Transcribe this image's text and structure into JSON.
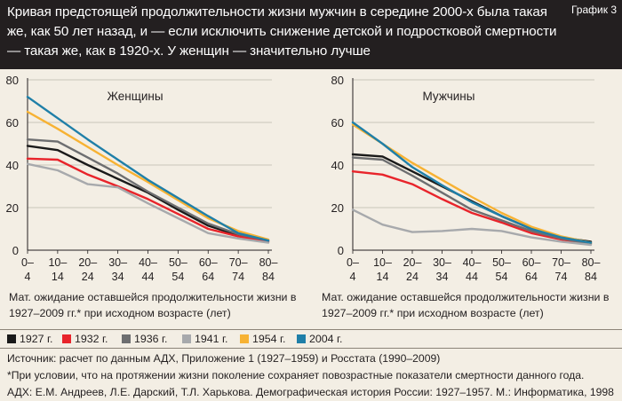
{
  "header": {
    "title": "Кривая предстоящей продолжительности жизни мужчин в середине 2000-х была такая же, как 50 лет назад, и — если исключить снижение детской и подростковой смертности — такая же, как в 1920-х. У женщин — значительно лучше",
    "tag": "График 3"
  },
  "chart_data": [
    {
      "type": "line",
      "title": "Женщины",
      "xlabel": "Мат. ожидание оставшейся продолжительности жизни в 1927–2009 гг.* при исходном возрасте (лет)",
      "ylabel": "",
      "ylim": [
        0,
        80
      ],
      "yticks": [
        "0",
        "20",
        "40",
        "60",
        "80"
      ],
      "categories": [
        "0–4",
        "10–14",
        "20–24",
        "30–34",
        "40–44",
        "50–54",
        "60–64",
        "70–74",
        "80–84"
      ],
      "series": [
        {
          "name": "1927 г.",
          "color": "#1a1a1a",
          "values": [
            49,
            47,
            40,
            33.5,
            27,
            19,
            11.5,
            7,
            4.5
          ]
        },
        {
          "name": "1932 г.",
          "color": "#e8242b",
          "values": [
            43,
            42.5,
            35.5,
            30,
            24,
            17,
            10,
            6.5,
            4
          ]
        },
        {
          "name": "1936 г.",
          "color": "#6d6e70",
          "values": [
            52,
            51,
            43.5,
            36,
            27.5,
            20,
            12.5,
            7.5,
            4.5
          ]
        },
        {
          "name": "1941 г.",
          "color": "#a7a9ac",
          "values": [
            40.5,
            37.5,
            31,
            29.5,
            22,
            15,
            8,
            5.5,
            3.5
          ]
        },
        {
          "name": "1954 г.",
          "color": "#f7b233",
          "values": [
            65,
            57,
            48.5,
            40,
            32,
            23.5,
            15,
            9,
            5
          ]
        },
        {
          "name": "2004 г.",
          "color": "#1f7fa8",
          "values": [
            72,
            62,
            52,
            42.5,
            33,
            24.5,
            16,
            8,
            4.5
          ]
        }
      ]
    },
    {
      "type": "line",
      "title": "Мужчины",
      "xlabel": "Мат. ожидание оставшейся продолжительности жизни в 1927–2009 гг.* при исходном возрасте (лет)",
      "ylabel": "",
      "ylim": [
        0,
        80
      ],
      "yticks": [
        "0",
        "20",
        "40",
        "60",
        "80"
      ],
      "categories": [
        "0–4",
        "10–14",
        "20–24",
        "30–34",
        "40–44",
        "50–54",
        "60–64",
        "70–74",
        "80–84"
      ],
      "series": [
        {
          "name": "1927 г.",
          "color": "#1a1a1a",
          "values": [
            45,
            44,
            37,
            30,
            23,
            16,
            10,
            6,
            4
          ]
        },
        {
          "name": "1932 г.",
          "color": "#e8242b",
          "values": [
            37,
            35.5,
            31,
            24,
            17.5,
            13,
            8,
            5,
            3
          ]
        },
        {
          "name": "1936 г.",
          "color": "#6d6e70",
          "values": [
            43.5,
            42.5,
            35,
            27,
            19,
            14,
            9,
            5.5,
            3
          ]
        },
        {
          "name": "1941 г.",
          "color": "#a7a9ac",
          "values": [
            19,
            12,
            8.5,
            9,
            10,
            9,
            6,
            4,
            2.5
          ]
        },
        {
          "name": "1954 г.",
          "color": "#f7b233",
          "values": [
            59,
            50,
            41,
            33,
            25,
            17.5,
            11,
            6.5,
            3.5
          ]
        },
        {
          "name": "2004 г.",
          "color": "#1f7fa8",
          "values": [
            60,
            50,
            39,
            30.5,
            22.5,
            16,
            10,
            6,
            3.5
          ]
        }
      ]
    }
  ],
  "legend": [
    {
      "label": "1927 г.",
      "color": "#1a1a1a"
    },
    {
      "label": "1932 г.",
      "color": "#e8242b"
    },
    {
      "label": "1936 г.",
      "color": "#6d6e70"
    },
    {
      "label": "1941 г.",
      "color": "#a7a9ac"
    },
    {
      "label": "1954 г.",
      "color": "#f7b233"
    },
    {
      "label": "2004 г.",
      "color": "#1f7fa8"
    }
  ],
  "notes": {
    "source": "Источник: расчет по данным АДХ, Приложение 1 (1927–1959) и Росстата (1990–2009)",
    "footnote": "*При условии, что на протяжении жизни поколение сохраняет повозрастные показатели смертности данного года.",
    "reference": "АДХ: Е.М. Андреев, Л.Е. Дарский, Т.Л. Харькова. Демографическая история России: 1927–1957. М.: Информатика, 1998"
  }
}
